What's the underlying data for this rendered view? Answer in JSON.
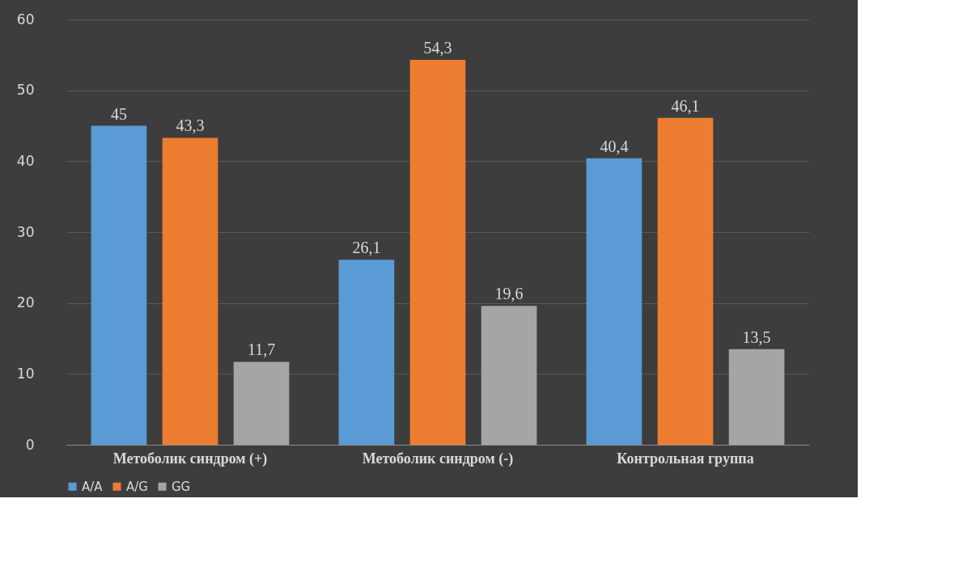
{
  "chart_data": {
    "type": "bar",
    "categories": [
      "Метоболик синдром (+)",
      "Метоболик синдром (-)",
      "Контрольная группа"
    ],
    "series": [
      {
        "name": "A/A",
        "color": "#5b9bd5",
        "values": [
          45,
          26.1,
          40.4
        ],
        "value_labels": [
          "45",
          "26,1",
          "40,4"
        ]
      },
      {
        "name": "A/G",
        "color": "#ed7d31",
        "values": [
          43.3,
          54.3,
          46.1
        ],
        "value_labels": [
          "43,3",
          "54,3",
          "46,1"
        ]
      },
      {
        "name": "GG",
        "color": "#a5a5a5",
        "values": [
          11.7,
          19.6,
          13.5
        ],
        "value_labels": [
          "11,7",
          "19,6",
          "13,5"
        ]
      }
    ],
    "ylim": [
      0,
      60
    ],
    "yticks": [
      0,
      10,
      20,
      30,
      40,
      50,
      60
    ],
    "grid": "y",
    "legend": "bottom"
  }
}
